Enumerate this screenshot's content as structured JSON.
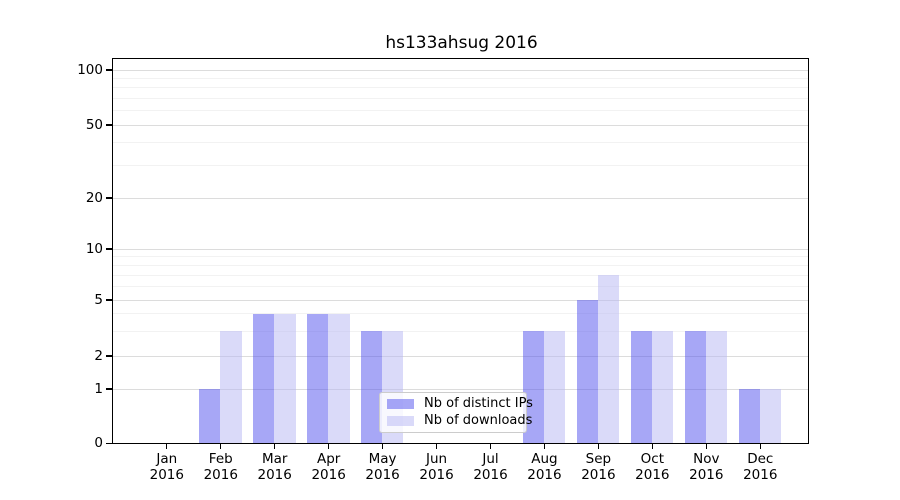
{
  "title": "hs133ahsug 2016",
  "colors": {
    "bar_distinct_ips": "rgba(80,80,238,0.5)",
    "bar_downloads": "rgba(182,182,244,0.5)",
    "grid_major": "#dcdcdc",
    "grid_minor": "#f2f2f2",
    "axis": "#000000",
    "legend_border": "#cccccc"
  },
  "chart_data": {
    "type": "bar",
    "title": "hs133ahsug 2016",
    "categories": [
      "Jan 2016",
      "Feb 2016",
      "Mar 2016",
      "Apr 2016",
      "May 2016",
      "Jun 2016",
      "Jul 2016",
      "Aug 2016",
      "Sep 2016",
      "Oct 2016",
      "Nov 2016",
      "Dec 2016"
    ],
    "series": [
      {
        "name": "Nb of distinct IPs",
        "color": "rgba(80,80,238,0.5)",
        "values": [
          0,
          1,
          4,
          4,
          3,
          0,
          0,
          3,
          5,
          3,
          3,
          1
        ]
      },
      {
        "name": "Nb of downloads",
        "color": "rgba(182,182,244,0.5)",
        "values": [
          0,
          3,
          4,
          4,
          3,
          0,
          0,
          3,
          7,
          3,
          3,
          1
        ]
      }
    ],
    "xlabel": "",
    "ylabel": "",
    "yscale": "log-like (1-2-5 sequence, 0 at baseline)",
    "ytick_labels": [
      "0",
      "1",
      "2",
      "5",
      "10",
      "20",
      "50",
      "100"
    ],
    "ytick_values": [
      0,
      1,
      2,
      5,
      10,
      20,
      50,
      100
    ],
    "minor_grid_values": [
      3,
      4,
      6,
      7,
      8,
      9,
      30,
      40,
      60,
      70,
      80,
      90
    ],
    "ylim": [
      0,
      115
    ],
    "grid": "horizontal major and minor gridlines",
    "legend_position": "inside, lower center"
  }
}
